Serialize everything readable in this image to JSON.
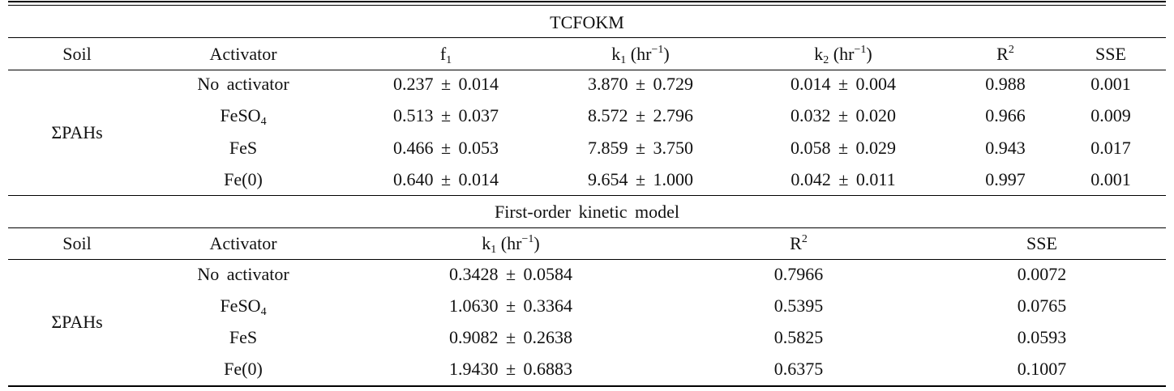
{
  "section1": {
    "caption": "TCFOKM",
    "headers": {
      "soil": "Soil",
      "activator": "Activator",
      "f1_main": "f",
      "f1_sub": "1",
      "k1_main": "k",
      "k1_sub": "1",
      "k1_unit": "(hr",
      "k1_sup": "−1",
      "k1_close": ")",
      "k2_main": "k",
      "k2_sub": "2",
      "k2_unit": "(hr",
      "k2_sup": "−1",
      "k2_close": ")",
      "r2_main": "R",
      "r2_sup": "2",
      "sse": "SSE"
    },
    "soil": "ΣPAHs",
    "rows": [
      {
        "act": "No activator",
        "act_sub": "",
        "f1": "0.237 ± 0.014",
        "k1": "3.870 ± 0.729",
        "k2": "0.014 ± 0.004",
        "r2": "0.988",
        "sse": "0.001"
      },
      {
        "act": "FeSO",
        "act_sub": "4",
        "f1": "0.513 ± 0.037",
        "k1": "8.572 ± 2.796",
        "k2": "0.032 ± 0.020",
        "r2": "0.966",
        "sse": "0.009"
      },
      {
        "act": "FeS",
        "act_sub": "",
        "f1": "0.466 ± 0.053",
        "k1": "7.859 ± 3.750",
        "k2": "0.058 ± 0.029",
        "r2": "0.943",
        "sse": "0.017"
      },
      {
        "act": "Fe(0)",
        "act_sub": "",
        "f1": "0.640 ± 0.014",
        "k1": "9.654 ± 1.000",
        "k2": "0.042 ± 0.011",
        "r2": "0.997",
        "sse": "0.001"
      }
    ]
  },
  "section2": {
    "caption": "First-order kinetic model",
    "headers": {
      "soil": "Soil",
      "activator": "Activator",
      "k1_main": "k",
      "k1_sub": "1",
      "k1_unit": "(hr",
      "k1_sup": "−1",
      "k1_close": ")",
      "r2_main": "R",
      "r2_sup": "2",
      "sse": "SSE"
    },
    "soil": "ΣPAHs",
    "rows": [
      {
        "act": "No activator",
        "act_sub": "",
        "k1": "0.3428 ± 0.0584",
        "r2": "0.7966",
        "sse": "0.0072"
      },
      {
        "act": "FeSO",
        "act_sub": "4",
        "k1": "1.0630 ± 0.3364",
        "r2": "0.5395",
        "sse": "0.0765"
      },
      {
        "act": "FeS",
        "act_sub": "",
        "k1": "0.9082 ± 0.2638",
        "r2": "0.5825",
        "sse": "0.0593"
      },
      {
        "act": "Fe(0)",
        "act_sub": "",
        "k1": "1.9430 ± 0.6883",
        "r2": "0.6375",
        "sse": "0.1007"
      }
    ]
  }
}
